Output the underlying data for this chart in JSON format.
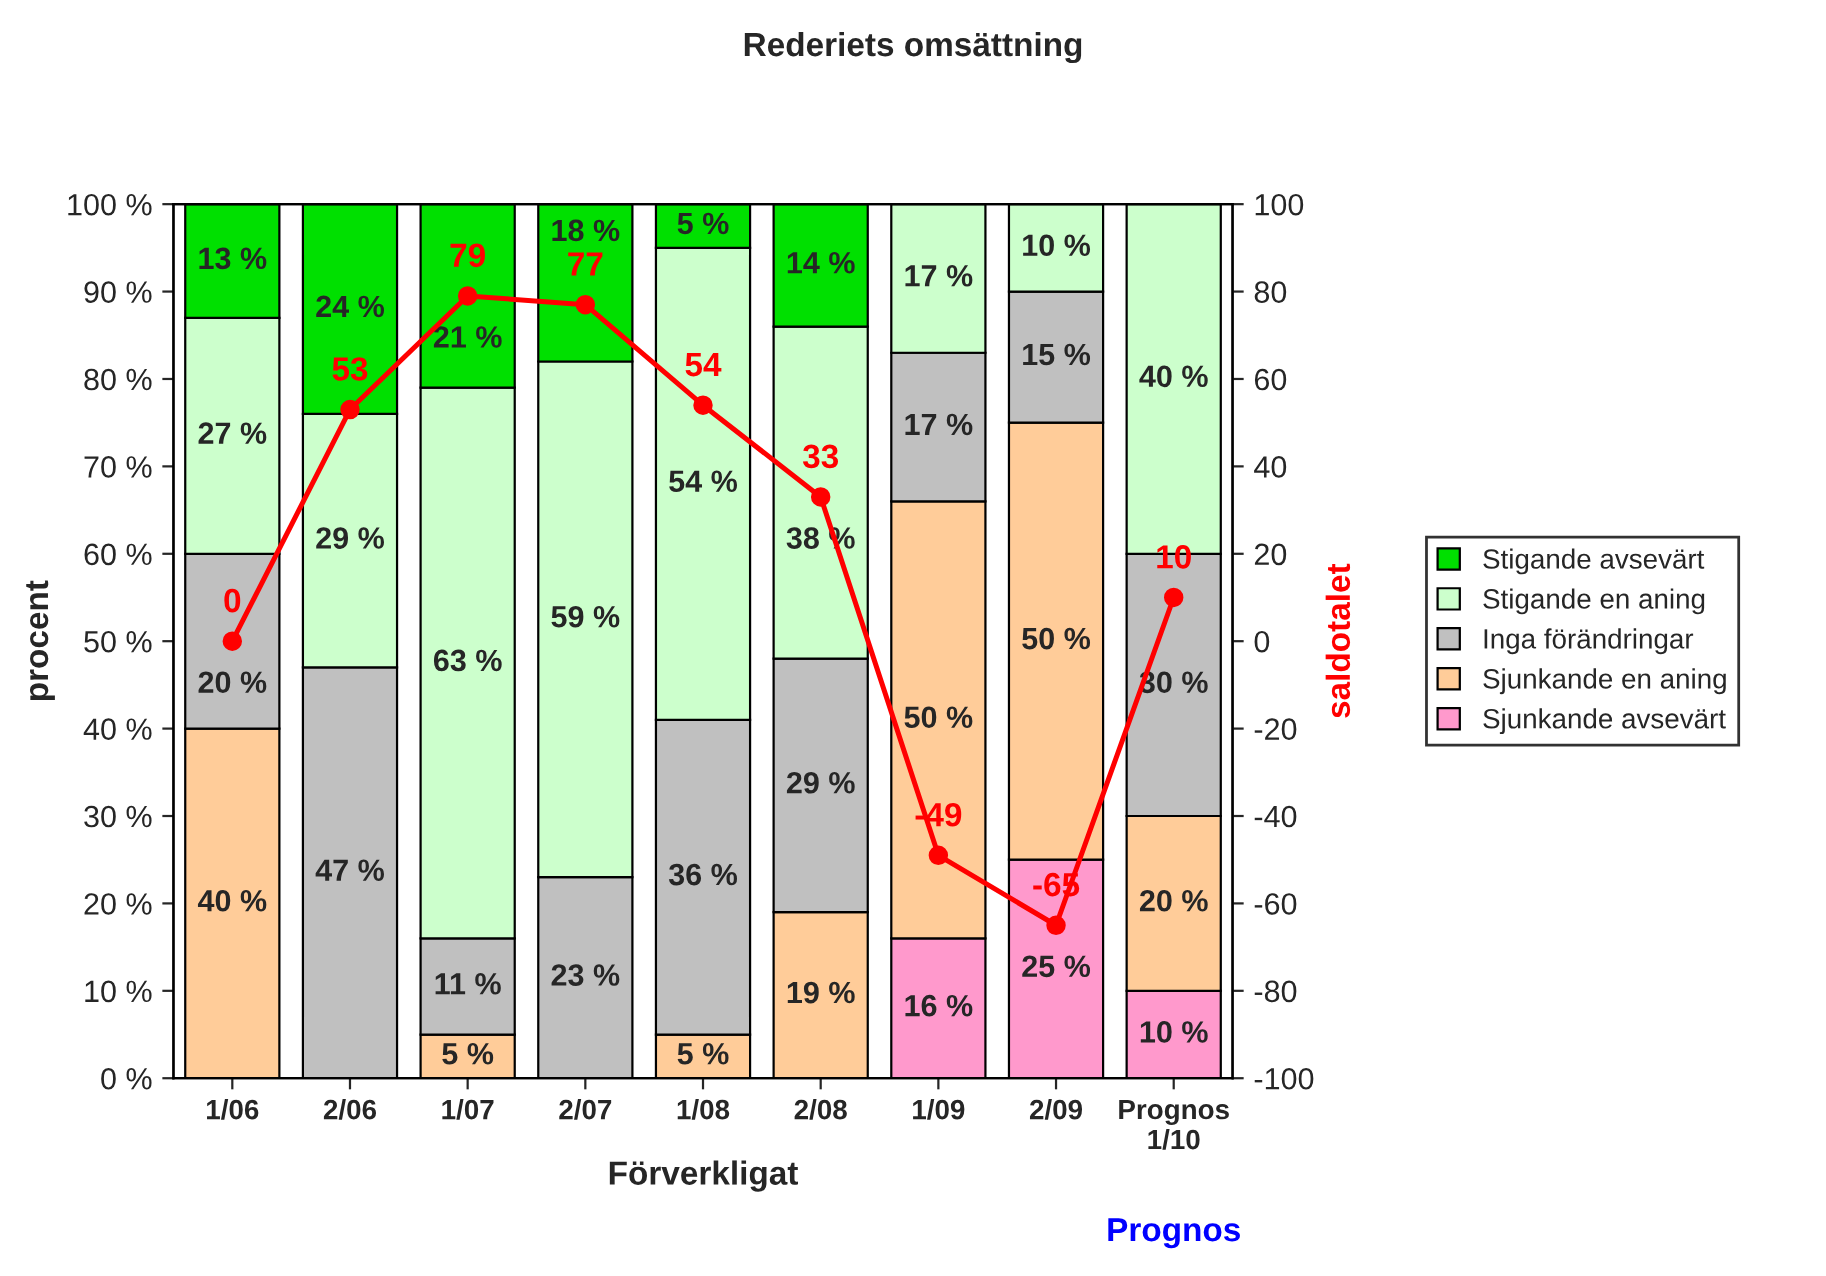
{
  "chart_data": {
    "type": "bar",
    "title": "Rederiets omsättning",
    "xlabel": "Förverkligat",
    "ylabel": "procent",
    "y2label": "saldotalet",
    "categories": [
      "1/06",
      "2/06",
      "1/07",
      "2/07",
      "1/08",
      "2/08",
      "1/09",
      "2/09",
      "Prognos\n1/10"
    ],
    "stacked": true,
    "series": [
      {
        "name": "Sjunkande avsevärt",
        "color": "#ff99cc",
        "values": [
          0,
          0,
          0,
          0,
          0,
          0,
          16,
          25,
          10
        ],
        "value_labels": [
          null,
          null,
          null,
          null,
          null,
          null,
          "16 %",
          "25 %",
          "10 %"
        ]
      },
      {
        "name": "Sjunkande en aning",
        "color": "#ffcc99",
        "values": [
          40,
          0,
          5,
          0,
          5,
          19,
          50,
          50,
          20
        ],
        "value_labels": [
          "40 %",
          null,
          "5 %",
          null,
          "5 %",
          "19 %",
          "50 %",
          "50 %",
          "20 %"
        ]
      },
      {
        "name": "Inga förändringar",
        "color": "#c0c0c0",
        "values": [
          20,
          47,
          11,
          23,
          36,
          29,
          17,
          15,
          30
        ],
        "value_labels": [
          "20 %",
          "47 %",
          "11 %",
          "23 %",
          "36 %",
          "29 %",
          "17 %",
          "15 %",
          "30 %"
        ]
      },
      {
        "name": "Stigande en aning",
        "color": "#ccffcc",
        "values": [
          27,
          29,
          63,
          59,
          54,
          38,
          17,
          10,
          40
        ],
        "value_labels": [
          "27 %",
          "29 %",
          "63 %",
          "59 %",
          "54 %",
          "38 %",
          "17 %",
          "10 %",
          "40 %"
        ]
      },
      {
        "name": "Stigande avsevärt",
        "color": "#00e000",
        "values": [
          13,
          24,
          21,
          18,
          5,
          14,
          0,
          0,
          0
        ],
        "value_labels": [
          "13 %",
          "24 %",
          "21 %",
          "18 %",
          "5 %",
          "14 %",
          null,
          null,
          null
        ]
      },
      {
        "type": "line",
        "axis": "y2",
        "color": "#ff0000",
        "marker": "circle",
        "values": [
          0,
          53,
          79,
          77,
          54,
          33,
          -49,
          -65,
          10
        ],
        "value_labels": [
          "0",
          "53",
          "79",
          "77",
          "54",
          "33",
          "-49",
          "-65",
          "10"
        ]
      }
    ],
    "ylim": [
      0,
      100
    ],
    "yticks": [
      {
        "value": 0,
        "label": "0 %"
      },
      {
        "value": 10,
        "label": "10 %"
      },
      {
        "value": 20,
        "label": "20 %"
      },
      {
        "value": 30,
        "label": "30 %"
      },
      {
        "value": 40,
        "label": "40 %"
      },
      {
        "value": 50,
        "label": "50 %"
      },
      {
        "value": 60,
        "label": "60 %"
      },
      {
        "value": 70,
        "label": "70 %"
      },
      {
        "value": 80,
        "label": "80 %"
      },
      {
        "value": 90,
        "label": "90 %"
      },
      {
        "value": 100,
        "label": "100 %"
      }
    ],
    "y2lim": [
      -100,
      100
    ],
    "y2ticks": [
      -100,
      -80,
      -60,
      -40,
      -20,
      0,
      20,
      40,
      60,
      80,
      100
    ],
    "legend": "right",
    "annotations": [
      "Prognos"
    ]
  }
}
